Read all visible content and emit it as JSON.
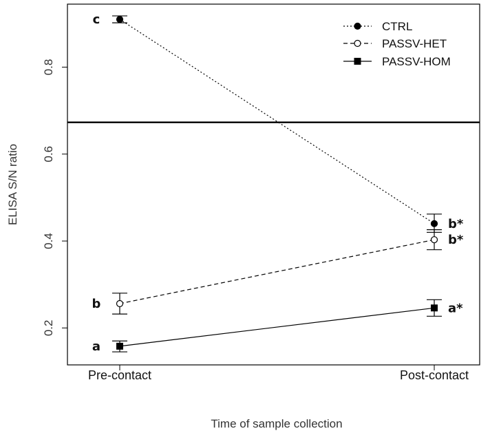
{
  "chart_data": {
    "type": "line",
    "xlabel": "Time of sample collection",
    "ylabel": "ELISA S/N ratio",
    "categories": [
      "Pre-contact",
      "Post-contact"
    ],
    "ylim": [
      0.115,
      0.945
    ],
    "yticks": [
      0.2,
      0.4,
      0.6,
      0.8
    ],
    "reference_line": 0.673,
    "legend_position": "top-right",
    "series": [
      {
        "name": "CTRL",
        "values": [
          0.91,
          0.44
        ],
        "err_low": [
          0.902,
          0.42
        ],
        "err_high": [
          0.918,
          0.462
        ],
        "annotations": [
          "c",
          "b*"
        ],
        "line_style": "dotted",
        "marker": "filled-circle"
      },
      {
        "name": "PASSV-HET",
        "values": [
          0.256,
          0.403
        ],
        "err_low": [
          0.232,
          0.38
        ],
        "err_high": [
          0.28,
          0.426
        ],
        "annotations": [
          "b",
          "b*"
        ],
        "line_style": "dashed",
        "marker": "open-circle"
      },
      {
        "name": "PASSV-HOM",
        "values": [
          0.158,
          0.246
        ],
        "err_low": [
          0.145,
          0.227
        ],
        "err_high": [
          0.17,
          0.265
        ],
        "annotations": [
          "a",
          "a*"
        ],
        "line_style": "solid",
        "marker": "filled-square"
      }
    ]
  }
}
